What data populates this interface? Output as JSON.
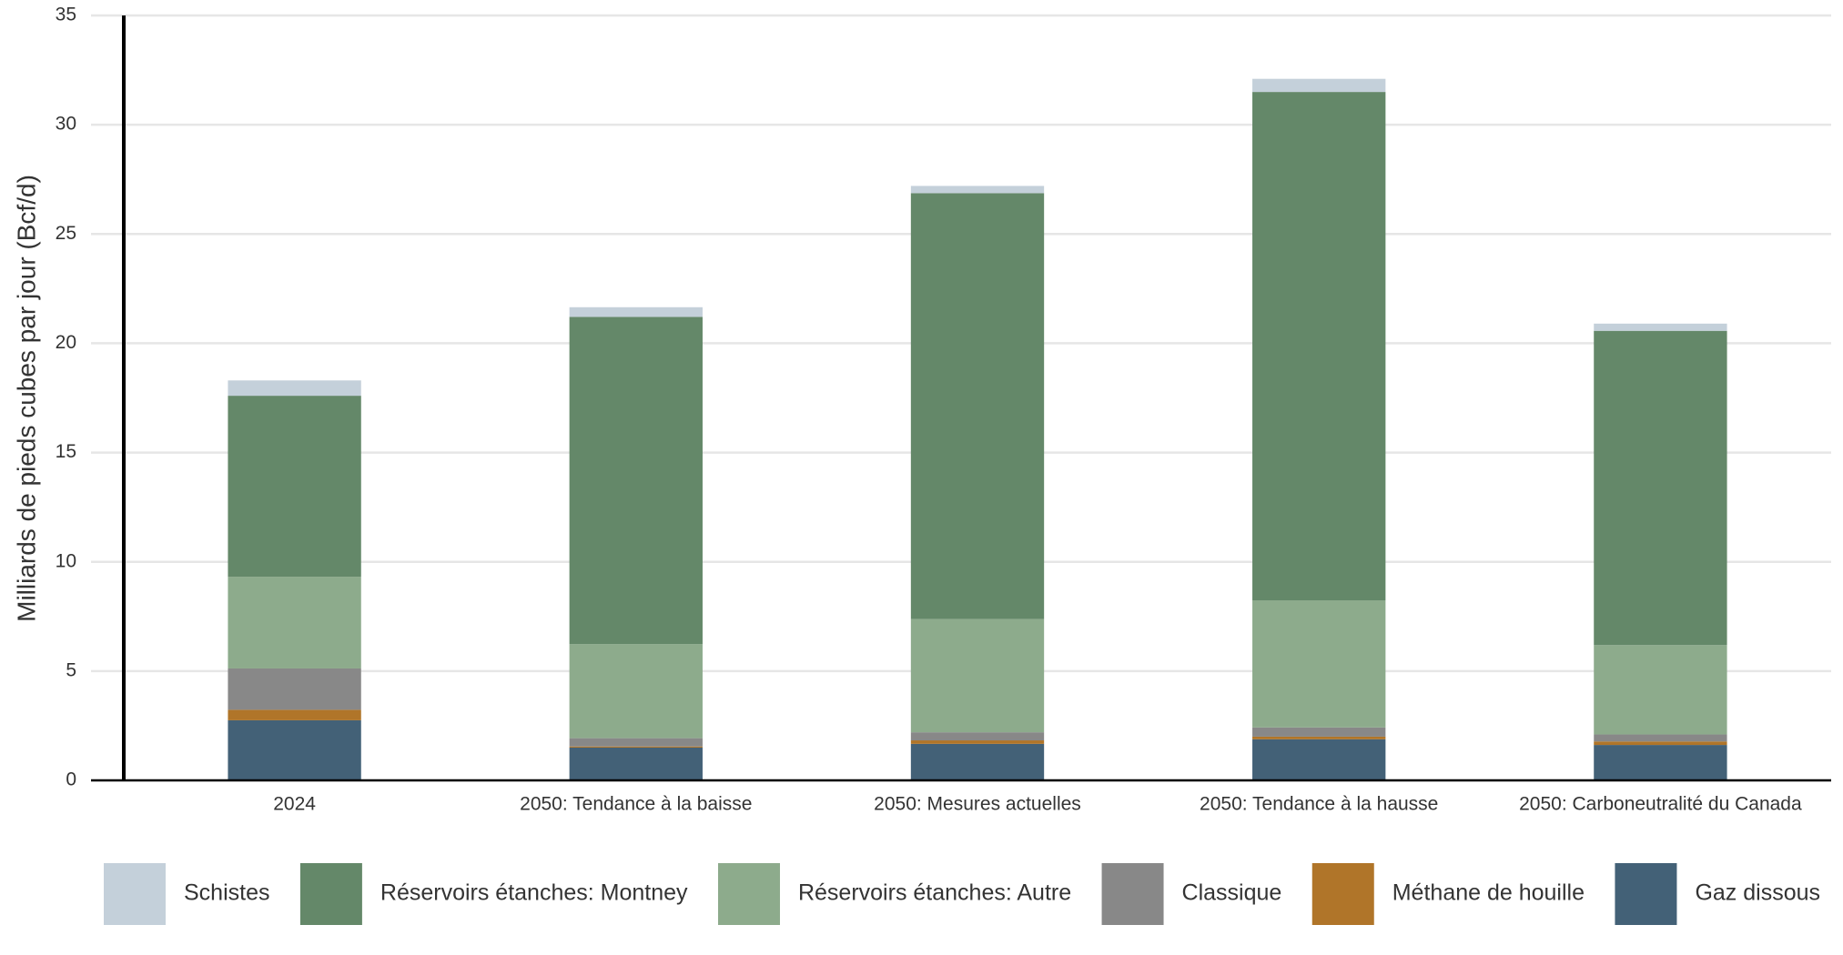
{
  "chart_data": {
    "type": "stacked_bar",
    "y_label": "Milliards de pieds cubes par jour (Bcf/d)",
    "categories": [
      "2024",
      "2050: Tendance à la baisse",
      "2050: Mesures actuelles",
      "2050: Tendance à la hausse",
      "2050: Carboneutralité du Canada"
    ],
    "series": [
      {
        "name": "Schistes",
        "color": "#c4d0da",
        "values": [
          0.7,
          0.44,
          0.33,
          0.6,
          0.33
        ]
      },
      {
        "name": "Réservoirs étanches: Montney",
        "color": "#648869",
        "values": [
          8.28,
          14.97,
          19.49,
          23.26,
          14.38
        ]
      },
      {
        "name": "Réservoirs étanches: Autre",
        "color": "#8dab8c",
        "values": [
          4.2,
          4.31,
          5.18,
          5.82,
          4.09
        ]
      },
      {
        "name": "Classique",
        "color": "#888888",
        "values": [
          1.89,
          0.38,
          0.37,
          0.42,
          0.32
        ]
      },
      {
        "name": "Méthane de houille",
        "color": "#b07529",
        "values": [
          0.48,
          0.05,
          0.16,
          0.12,
          0.16
        ]
      },
      {
        "name": "Gaz dissous",
        "color": "#436177",
        "values": [
          2.75,
          1.5,
          1.67,
          1.88,
          1.62
        ]
      }
    ],
    "ylim": [
      0,
      35
    ],
    "yticks": [
      0,
      5,
      10,
      15,
      20,
      25,
      30,
      35
    ],
    "grid": true
  }
}
